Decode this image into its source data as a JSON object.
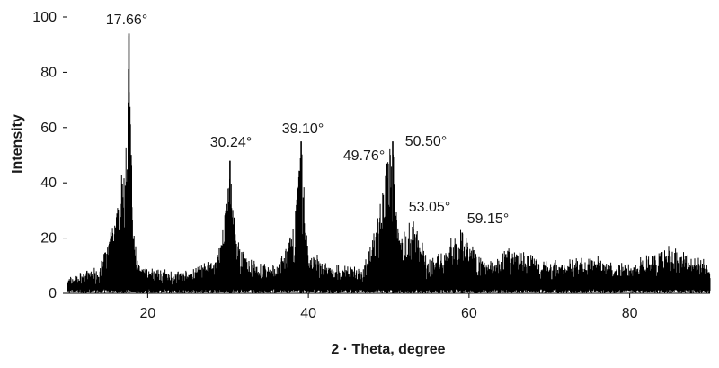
{
  "chart_data": {
    "type": "line",
    "title": "",
    "xlabel": "2 · Theta, degree",
    "ylabel": "Intensity",
    "xlim": [
      10,
      90
    ],
    "ylim": [
      0,
      100
    ],
    "grid": false,
    "legend": "none",
    "xticks": [
      20,
      40,
      60,
      80
    ],
    "yticks": [
      0,
      20,
      40,
      60,
      80,
      100
    ],
    "line_color": "#000000",
    "peaks": [
      {
        "x": 17.66,
        "y": 94,
        "label": "17.66°"
      },
      {
        "x": 30.24,
        "y": 48,
        "label": "30.24°"
      },
      {
        "x": 39.1,
        "y": 55,
        "label": "39.10°"
      },
      {
        "x": 49.76,
        "y": 47,
        "label": "49.76°"
      },
      {
        "x": 50.5,
        "y": 55,
        "label": "50.50°"
      },
      {
        "x": 53.05,
        "y": 26,
        "label": "53.05°"
      },
      {
        "x": 59.15,
        "y": 22,
        "label": "59.15°"
      }
    ],
    "series": [
      {
        "values": [
          {
            "x": 10,
            "y": 4
          },
          {
            "x": 12,
            "y": 6
          },
          {
            "x": 14,
            "y": 8
          },
          {
            "x": 15.5,
            "y": 22
          },
          {
            "x": 16.5,
            "y": 32
          },
          {
            "x": 17.2,
            "y": 60
          },
          {
            "x": 17.66,
            "y": 94
          },
          {
            "x": 18.2,
            "y": 22
          },
          {
            "x": 19,
            "y": 8
          },
          {
            "x": 22,
            "y": 7
          },
          {
            "x": 25,
            "y": 6
          },
          {
            "x": 28.5,
            "y": 12
          },
          {
            "x": 29.5,
            "y": 25
          },
          {
            "x": 30.24,
            "y": 48
          },
          {
            "x": 31,
            "y": 18
          },
          {
            "x": 33,
            "y": 10
          },
          {
            "x": 36,
            "y": 8
          },
          {
            "x": 38,
            "y": 20
          },
          {
            "x": 39.1,
            "y": 55
          },
          {
            "x": 40,
            "y": 14
          },
          {
            "x": 43,
            "y": 8
          },
          {
            "x": 47,
            "y": 9
          },
          {
            "x": 48.5,
            "y": 25
          },
          {
            "x": 49.76,
            "y": 47
          },
          {
            "x": 50.5,
            "y": 55
          },
          {
            "x": 51.5,
            "y": 20
          },
          {
            "x": 53.05,
            "y": 26
          },
          {
            "x": 55,
            "y": 10
          },
          {
            "x": 59.15,
            "y": 22
          },
          {
            "x": 62,
            "y": 10
          },
          {
            "x": 65,
            "y": 15
          },
          {
            "x": 70,
            "y": 10
          },
          {
            "x": 75,
            "y": 12
          },
          {
            "x": 80,
            "y": 9
          },
          {
            "x": 85,
            "y": 15
          },
          {
            "x": 90,
            "y": 10
          }
        ]
      }
    ]
  }
}
